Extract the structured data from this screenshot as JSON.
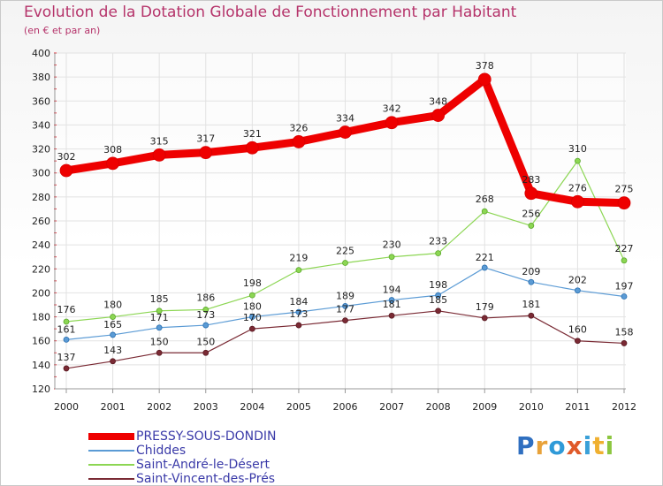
{
  "title": "Evolution de la Dotation Globale de Fonctionnement par Habitant",
  "subtitle": "(en € et par an)",
  "chart_data": {
    "type": "line",
    "title": "Evolution de la Dotation Globale de Fonctionnement par Habitant",
    "subtitle": "(en € et par an)",
    "xlabel": "",
    "ylabel": "",
    "x": [
      2000,
      2001,
      2002,
      2003,
      2004,
      2005,
      2006,
      2007,
      2008,
      2009,
      2010,
      2011,
      2012
    ],
    "ylim": [
      120,
      400
    ],
    "yticks": [
      120,
      140,
      160,
      180,
      200,
      220,
      240,
      260,
      280,
      300,
      320,
      340,
      360,
      380,
      400
    ],
    "grid": true,
    "legend_position": "bottom-left",
    "series": [
      {
        "name": "PRESSY-SOUS-DONDIN",
        "color": "#ee0000",
        "values": [
          302,
          308,
          315,
          317,
          321,
          326,
          334,
          342,
          348,
          378,
          283,
          276,
          275
        ]
      },
      {
        "name": "Chiddes",
        "color": "#5b9bd5",
        "values": [
          161,
          165,
          171,
          173,
          180,
          184,
          189,
          194,
          198,
          221,
          209,
          202,
          197
        ]
      },
      {
        "name": "Saint-André-le-Désert",
        "color": "#8cd653",
        "values": [
          176,
          180,
          185,
          186,
          198,
          219,
          225,
          230,
          233,
          268,
          256,
          310,
          227
        ]
      },
      {
        "name": "Saint-Vincent-des-Prés",
        "color": "#7a2a34",
        "values": [
          137,
          143,
          150,
          150,
          170,
          173,
          177,
          181,
          185,
          179,
          181,
          160,
          158
        ]
      }
    ]
  },
  "legend": [
    {
      "label": "PRESSY-SOUS-DONDIN",
      "color": "#ee0000"
    },
    {
      "label": "Chiddes",
      "color": "#5b9bd5"
    },
    {
      "label": "Saint-André-le-Désert",
      "color": "#8cd653"
    },
    {
      "label": "Saint-Vincent-des-Prés",
      "color": "#7a2a34"
    }
  ],
  "logo": {
    "text": "Proxiti",
    "letters": [
      {
        "ch": "P",
        "color": "#2f6fc0"
      },
      {
        "ch": "r",
        "color": "#e8a23a"
      },
      {
        "ch": "o",
        "color": "#2f9ad8"
      },
      {
        "ch": "x",
        "color": "#e05a2a"
      },
      {
        "ch": "i",
        "color": "#3aa0d8"
      },
      {
        "ch": "t",
        "color": "#f0b030"
      },
      {
        "ch": "i",
        "color": "#8cc63f"
      }
    ]
  }
}
